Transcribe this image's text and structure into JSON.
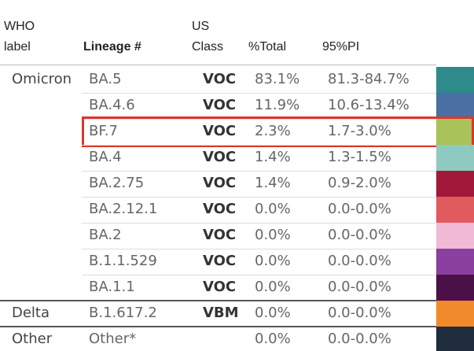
{
  "header": {
    "columns": [
      {
        "lines": [
          "WHO",
          "label"
        ]
      },
      {
        "lines": [
          "Lineage #"
        ]
      },
      {
        "lines": [
          "US",
          "Class"
        ]
      },
      {
        "lines": [
          "%Total"
        ]
      },
      {
        "lines": [
          "95%PI"
        ]
      }
    ]
  },
  "groups": [
    {
      "label": "Omicron",
      "rows": [
        {
          "lineage": "BA.5",
          "class": "VOC",
          "total": "83.1%",
          "pi": "81.3-84.7%",
          "color": "#2f8a8c"
        },
        {
          "lineage": "BA.4.6",
          "class": "VOC",
          "total": "11.9%",
          "pi": "10.6-13.4%",
          "color": "#4a6fa3"
        },
        {
          "lineage": "BF.7",
          "class": "VOC",
          "total": "2.3%",
          "pi": "1.7-3.0%",
          "color": "#a9c25a",
          "highlight": true
        },
        {
          "lineage": "BA.4",
          "class": "VOC",
          "total": "1.4%",
          "pi": "1.3-1.5%",
          "color": "#8fcac0"
        },
        {
          "lineage": "BA.2.75",
          "class": "VOC",
          "total": "1.4%",
          "pi": "0.9-2.0%",
          "color": "#a2183a"
        },
        {
          "lineage": "BA.2.12.1",
          "class": "VOC",
          "total": "0.0%",
          "pi": "0.0-0.0%",
          "color": "#e05a5e"
        },
        {
          "lineage": "BA.2",
          "class": "VOC",
          "total": "0.0%",
          "pi": "0.0-0.0%",
          "color": "#f0b9d6"
        },
        {
          "lineage": "B.1.1.529",
          "class": "VOC",
          "total": "0.0%",
          "pi": "0.0-0.0%",
          "color": "#8b3f9f"
        },
        {
          "lineage": "BA.1.1",
          "class": "VOC",
          "total": "0.0%",
          "pi": "0.0-0.0%",
          "color": "#4b1048"
        }
      ]
    },
    {
      "label": "Delta",
      "rows": [
        {
          "lineage": "B.1.617.2",
          "class": "VBM",
          "total": "0.0%",
          "pi": "0.0-0.0%",
          "color": "#f08a2a"
        }
      ]
    },
    {
      "label": "Other",
      "rows": [
        {
          "lineage": "Other*",
          "total": "0.0%",
          "pi": "0.0-0.0%",
          "color": "#1f2c3c"
        }
      ]
    }
  ]
}
